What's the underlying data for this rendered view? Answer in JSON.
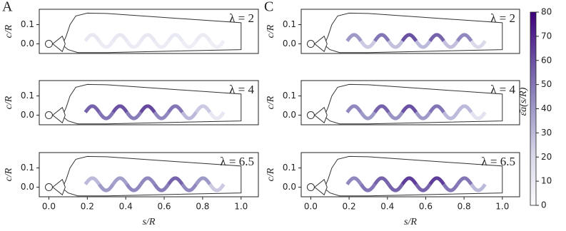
{
  "chart_data": [
    {
      "type": "wave-heatmap",
      "letter": "A",
      "label": "λ = 2",
      "ylabel": "c/R",
      "xlim": [
        -0.05,
        1.09
      ],
      "ylim": [
        -0.05,
        0.18
      ],
      "yticks": [
        {
          "value": 0,
          "label": "0.0"
        },
        {
          "value": 0.1,
          "label": "0.1"
        }
      ],
      "values": [
        12,
        9,
        12,
        9,
        12,
        9,
        11,
        8,
        10,
        8
      ]
    },
    {
      "type": "wave-heatmap",
      "label": "λ = 4",
      "ylabel": "c/R",
      "xlim": [
        -0.05,
        1.09
      ],
      "ylim": [
        -0.05,
        0.18
      ],
      "yticks": [
        {
          "value": 0,
          "label": "0.0"
        },
        {
          "value": 0.1,
          "label": "0.1"
        }
      ],
      "values": [
        55,
        50,
        60,
        48,
        62,
        45,
        50,
        30,
        25,
        12
      ]
    },
    {
      "type": "wave-heatmap",
      "label": "λ = 6.5",
      "ylabel": "c/R",
      "xlabel": "s/R",
      "xlim": [
        -0.05,
        1.09
      ],
      "ylim": [
        -0.05,
        0.18
      ],
      "yticks": [
        {
          "value": 0,
          "label": "0.0"
        },
        {
          "value": 0.1,
          "label": "0.1"
        }
      ],
      "xticks": [
        {
          "value": 0,
          "label": "0.0"
        },
        {
          "value": 0.2,
          "label": "0.2"
        },
        {
          "value": 0.4,
          "label": "0.4"
        },
        {
          "value": 0.6,
          "label": "0.6"
        },
        {
          "value": 0.8,
          "label": "0.8"
        },
        {
          "value": 1,
          "label": "1.0"
        }
      ],
      "values": [
        30,
        40,
        38,
        45,
        45,
        48,
        55,
        45,
        40,
        25
      ]
    },
    {
      "type": "wave-heatmap",
      "letter": "C",
      "label": "λ = 2",
      "ylabel": "c/R",
      "xlim": [
        -0.05,
        1.09
      ],
      "ylim": [
        -0.05,
        0.18
      ],
      "yticks": [
        {
          "value": 0,
          "label": "0.0"
        },
        {
          "value": 0.1,
          "label": "0.1"
        }
      ],
      "values": [
        40,
        25,
        50,
        28,
        60,
        30,
        55,
        28,
        45,
        20
      ]
    },
    {
      "type": "wave-heatmap",
      "label": "λ = 4",
      "ylabel": "c/R",
      "xlim": [
        -0.05,
        1.09
      ],
      "ylim": [
        -0.05,
        0.18
      ],
      "yticks": [
        {
          "value": 0,
          "label": "0.0"
        },
        {
          "value": 0.1,
          "label": "0.1"
        }
      ],
      "values": [
        45,
        40,
        55,
        42,
        60,
        40,
        50,
        30,
        30,
        15
      ]
    },
    {
      "type": "wave-heatmap",
      "label": "λ = 6.5",
      "ylabel": "c/R",
      "xlabel": "s/R",
      "xlim": [
        -0.05,
        1.09
      ],
      "ylim": [
        -0.05,
        0.18
      ],
      "yticks": [
        {
          "value": 0,
          "label": "0.0"
        },
        {
          "value": 0.1,
          "label": "0.1"
        }
      ],
      "xticks": [
        {
          "value": 0,
          "label": "0.0"
        },
        {
          "value": 0.2,
          "label": "0.2"
        },
        {
          "value": 0.4,
          "label": "0.4"
        },
        {
          "value": 0.6,
          "label": "0.6"
        },
        {
          "value": 0.8,
          "label": "0.8"
        },
        {
          "value": 1,
          "label": "1.0"
        }
      ],
      "values": [
        45,
        50,
        55,
        55,
        65,
        55,
        65,
        50,
        50,
        30
      ]
    },
    {
      "type": "colorbar",
      "label": "ε̄a(s/R)",
      "zlim": [
        0,
        80
      ],
      "zticks": [
        0,
        10,
        20,
        30,
        40,
        50,
        60,
        70,
        80
      ]
    }
  ]
}
